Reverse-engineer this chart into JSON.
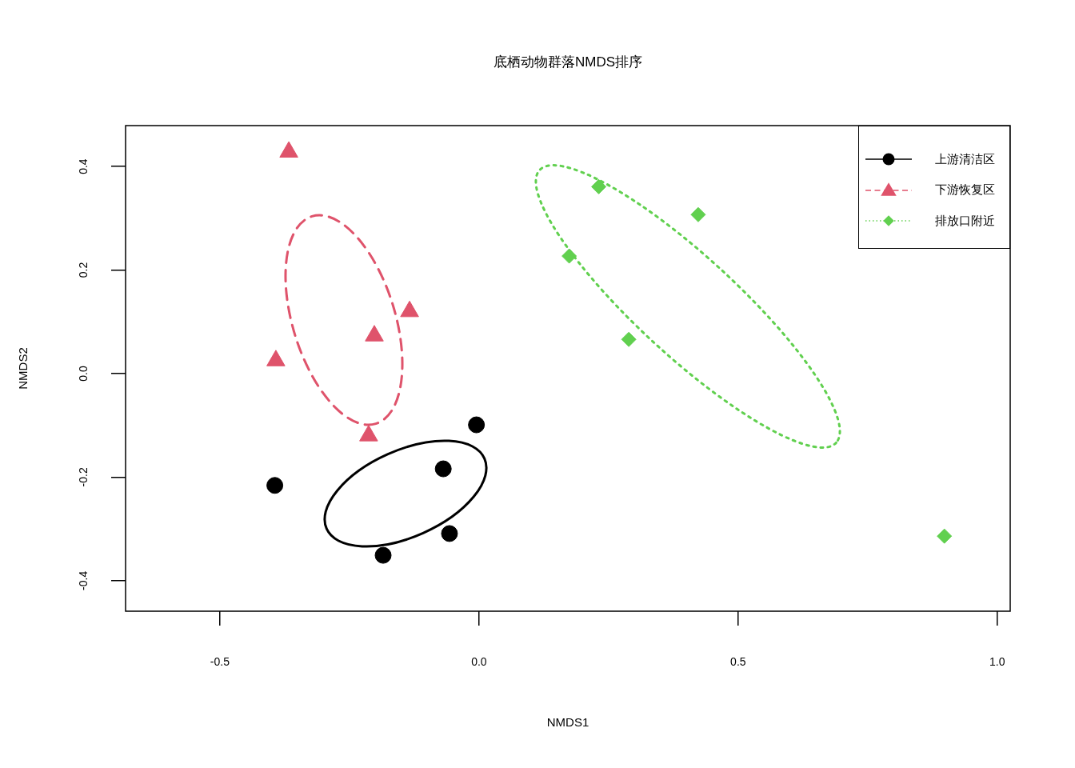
{
  "chart_data": {
    "type": "scatter",
    "title": "底栖动物群落NMDS排序",
    "xlabel": "NMDS1",
    "ylabel": "NMDS2",
    "xlim": [
      -0.682,
      1.025
    ],
    "ylim": [
      -0.459,
      0.479
    ],
    "xticks": [
      -0.5,
      {
        "value": 0,
        "label": "0.0"
      },
      0.5,
      {
        "value": 1,
        "label": "1.0"
      }
    ],
    "yticks": [
      -0.4,
      -0.2,
      {
        "value": 0,
        "label": "0.0"
      },
      0.2,
      0.4
    ],
    "grid": false,
    "legend": "top right",
    "series": [
      {
        "name": "上游清洁区",
        "type": "scatter",
        "color": "#000000",
        "marker": "circle",
        "x": [
          -0.394,
          -0.185,
          -0.069,
          -0.057,
          -0.005
        ],
        "values": [
          -0.216,
          -0.351,
          -0.184,
          -0.309,
          -0.099
        ]
      },
      {
        "name": "下游恢复区",
        "type": "scatter",
        "color": "#df536b",
        "marker": "triangle",
        "x": [
          -0.367,
          -0.392,
          -0.202,
          -0.134,
          -0.213
        ],
        "values": [
          0.428,
          0.025,
          0.073,
          0.12,
          -0.12
        ]
      },
      {
        "name": "排放口附近",
        "type": "scatter",
        "color": "#61d04f",
        "marker": "diamond",
        "x": [
          0.231,
          0.423,
          0.174,
          0.289,
          0.898
        ],
        "values": [
          0.361,
          0.307,
          0.227,
          0.066,
          -0.314
        ]
      }
    ]
  }
}
